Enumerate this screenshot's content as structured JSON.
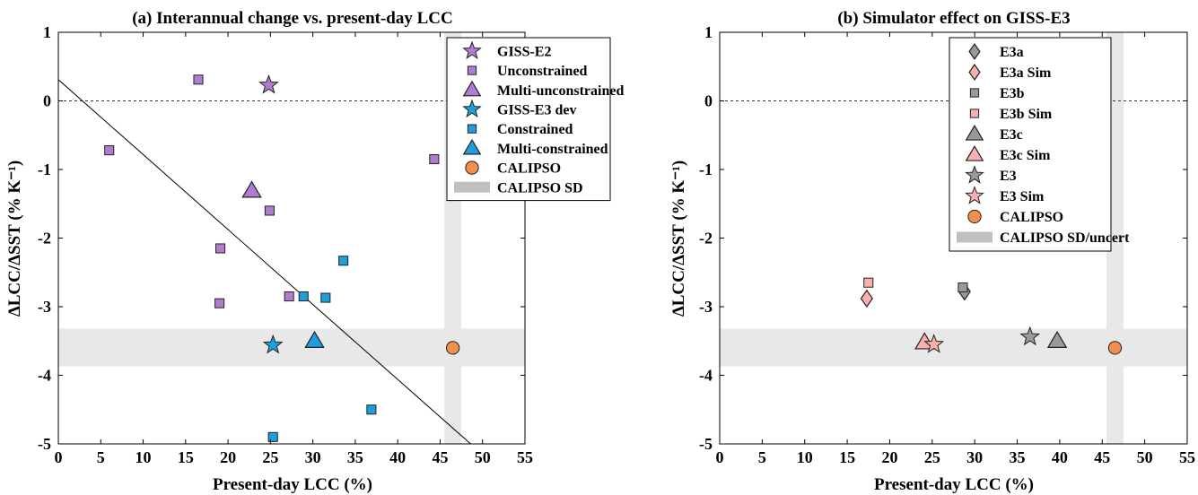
{
  "chart_data": [
    {
      "type": "scatter",
      "title": "(a) Interannual change vs. present-day LCC",
      "xlabel": "Present-day LCC (%)",
      "ylabel": "ΔLCC/ΔSST (% K⁻¹)",
      "xlim": [
        0,
        55
      ],
      "ylim": [
        -5,
        1
      ],
      "xticks": [
        "0",
        "5",
        "10",
        "15",
        "20",
        "25",
        "30",
        "35",
        "40",
        "45",
        "50",
        "55"
      ],
      "yticks": [
        "1",
        "0",
        "-1",
        "-2",
        "-3",
        "-4",
        "-5"
      ],
      "grid": false,
      "legend_position": "top-right",
      "zero_line": true,
      "shading": {
        "horizontal_band": [
          -3.87,
          -3.32
        ],
        "vertical_band": [
          45.5,
          47.5
        ],
        "color": "#e8e8e8"
      },
      "regression_line": {
        "x": [
          0,
          48.6
        ],
        "y": [
          0.31,
          -5
        ]
      },
      "series": [
        {
          "name": "GISS-E2",
          "marker": "star",
          "color": "#b07cd0",
          "points": [
            [
              24.8,
              0.23
            ]
          ]
        },
        {
          "name": "Unconstrained",
          "marker": "square",
          "color": "#b07cd0",
          "points": [
            [
              16.5,
              0.31
            ],
            [
              6.0,
              -0.72
            ],
            [
              44.3,
              -0.85
            ],
            [
              24.9,
              -1.6
            ],
            [
              19.1,
              -2.15
            ],
            [
              19.0,
              -2.95
            ],
            [
              27.2,
              -2.85
            ]
          ]
        },
        {
          "name": "Multi-unconstrained",
          "marker": "triangle",
          "color": "#b07cd0",
          "points": [
            [
              22.8,
              -1.31
            ]
          ]
        },
        {
          "name": "GISS-E3 dev",
          "marker": "star",
          "color": "#1e9fdc",
          "points": [
            [
              25.3,
              -3.56
            ]
          ]
        },
        {
          "name": "Constrained",
          "marker": "square",
          "color": "#1e9fdc",
          "points": [
            [
              28.9,
              -2.85
            ],
            [
              31.5,
              -2.87
            ],
            [
              33.6,
              -2.33
            ],
            [
              36.9,
              -4.5
            ],
            [
              25.3,
              -4.9
            ]
          ]
        },
        {
          "name": "Multi-constrained",
          "marker": "triangle",
          "color": "#1e9fdc",
          "points": [
            [
              30.2,
              -3.5
            ]
          ]
        },
        {
          "name": "CALIPSO",
          "marker": "circle",
          "color": "#f0904a",
          "points": [
            [
              46.5,
              -3.6
            ]
          ]
        }
      ],
      "legend_entries": [
        {
          "label": "GISS-E2",
          "marker": "star",
          "color": "#b07cd0"
        },
        {
          "label": "Unconstrained",
          "marker": "square",
          "color": "#b07cd0"
        },
        {
          "label": "Multi-unconstrained",
          "marker": "triangle",
          "color": "#b07cd0"
        },
        {
          "label": "GISS-E3 dev",
          "marker": "star",
          "color": "#1e9fdc"
        },
        {
          "label": "Constrained",
          "marker": "square",
          "color": "#1e9fdc"
        },
        {
          "label": "Multi-constrained",
          "marker": "triangle",
          "color": "#1e9fdc"
        },
        {
          "label": "CALIPSO",
          "marker": "circle",
          "color": "#f0904a"
        },
        {
          "label": "CALIPSO SD",
          "marker": "band",
          "color": "#c0c0c0"
        }
      ]
    },
    {
      "type": "scatter",
      "title": "(b) Simulator effect on GISS-E3",
      "xlabel": "Present-day LCC (%)",
      "ylabel": "ΔLCC/ΔSST (% K⁻¹)",
      "xlim": [
        0,
        55
      ],
      "ylim": [
        -5,
        1
      ],
      "xticks": [
        "0",
        "5",
        "10",
        "15",
        "20",
        "25",
        "30",
        "35",
        "40",
        "45",
        "50",
        "55"
      ],
      "yticks": [
        "1",
        "0",
        "-1",
        "-2",
        "-3",
        "-4",
        "-5"
      ],
      "grid": false,
      "legend_position": "top-right",
      "zero_line": true,
      "shading": {
        "horizontal_band": [
          -3.87,
          -3.32
        ],
        "vertical_band": [
          45.5,
          47.5
        ],
        "color": "#e8e8e8"
      },
      "series": [
        {
          "name": "E3a",
          "marker": "diamond",
          "color": "#9a9a9a",
          "points": [
            [
              28.8,
              -2.78
            ]
          ]
        },
        {
          "name": "E3a Sim",
          "marker": "diamond",
          "color": "#fbb0b0",
          "points": [
            [
              17.3,
              -2.88
            ]
          ]
        },
        {
          "name": "E3b",
          "marker": "square",
          "color": "#9a9a9a",
          "points": [
            [
              28.6,
              -2.72
            ]
          ]
        },
        {
          "name": "E3b Sim",
          "marker": "square",
          "color": "#fbb0b0",
          "points": [
            [
              17.5,
              -2.65
            ]
          ]
        },
        {
          "name": "E3c",
          "marker": "triangle",
          "color": "#9a9a9a",
          "points": [
            [
              39.7,
              -3.5
            ]
          ]
        },
        {
          "name": "E3c Sim",
          "marker": "triangle",
          "color": "#fbb0b0",
          "points": [
            [
              24.1,
              -3.52
            ]
          ]
        },
        {
          "name": "E3",
          "marker": "star",
          "color": "#9a9a9a",
          "points": [
            [
              36.5,
              -3.44
            ]
          ]
        },
        {
          "name": "E3 Sim",
          "marker": "star",
          "color": "#fbb0b0",
          "points": [
            [
              25.2,
              -3.55
            ]
          ]
        },
        {
          "name": "CALIPSO",
          "marker": "circle",
          "color": "#f0904a",
          "points": [
            [
              46.5,
              -3.6
            ]
          ]
        }
      ],
      "legend_entries": [
        {
          "label": "E3a",
          "marker": "diamond",
          "color": "#9a9a9a"
        },
        {
          "label": "E3a Sim",
          "marker": "diamond",
          "color": "#fbb0b0"
        },
        {
          "label": "E3b",
          "marker": "square",
          "color": "#9a9a9a"
        },
        {
          "label": "E3b Sim",
          "marker": "square",
          "color": "#fbb0b0"
        },
        {
          "label": "E3c",
          "marker": "triangle",
          "color": "#9a9a9a"
        },
        {
          "label": "E3c Sim",
          "marker": "triangle",
          "color": "#fbb0b0"
        },
        {
          "label": "E3",
          "marker": "star",
          "color": "#9a9a9a"
        },
        {
          "label": "E3 Sim",
          "marker": "star",
          "color": "#fbb0b0"
        },
        {
          "label": "CALIPSO",
          "marker": "circle",
          "color": "#f0904a"
        },
        {
          "label": "CALIPSO SD/uncert",
          "marker": "band",
          "color": "#c0c0c0"
        }
      ]
    }
  ]
}
